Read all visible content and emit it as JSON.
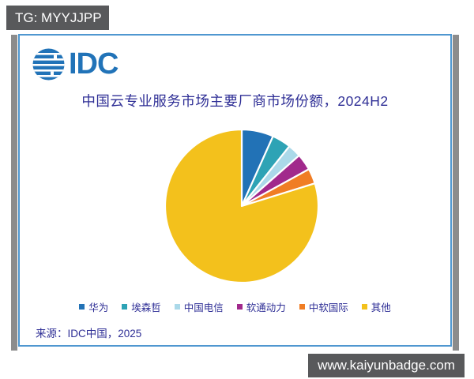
{
  "watermarks": {
    "top_left": "TG: MYYJJPP",
    "bottom_right": "www.kaiyunbadge.com"
  },
  "logo": {
    "text": "IDC"
  },
  "source": {
    "text": "来源：IDC中国，2025"
  },
  "colors": {
    "badge_bg": "#58595B",
    "card_border": "#4F97D0",
    "shadow_gray": "#8C8C8C",
    "text_navy": "#2F2F96",
    "logo_blue": "#2173B8"
  },
  "chart_data": {
    "type": "pie",
    "title": "中国云专业服务市场主要厂商市场份额，2024H2",
    "labels": [
      "华为",
      "埃森哲",
      "中国电信",
      "软通动力",
      "中软国际",
      "其他"
    ],
    "values": [
      6.7,
      4.0,
      2.8,
      3.5,
      3.2,
      79.8
    ],
    "colors": [
      "#2272B6",
      "#2EA3B5",
      "#ABD9E9",
      "#A1298C",
      "#F07D24",
      "#F3C11C"
    ],
    "start_angle_deg": 0,
    "direction": "clockwise",
    "slice_border_color": "#FFFFFF",
    "legend_position": "bottom",
    "data_labels_shown": false
  }
}
